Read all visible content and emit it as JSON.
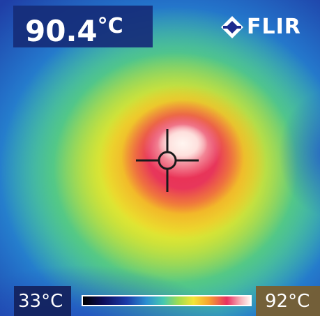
{
  "reading": {
    "value": "90.4",
    "unit": "°C"
  },
  "brand": {
    "name": "FLIR",
    "icon": "flir-logo-icon"
  },
  "scale": {
    "min": "33°C",
    "max": "92°C"
  },
  "palette": {
    "hot": "#fff6f2",
    "warm": "#e83060",
    "mid": "#f4e436",
    "cool": "#2c8fd0",
    "cold": "#0c0c5a"
  },
  "crosshair": {
    "icon": "crosshair-icon"
  }
}
